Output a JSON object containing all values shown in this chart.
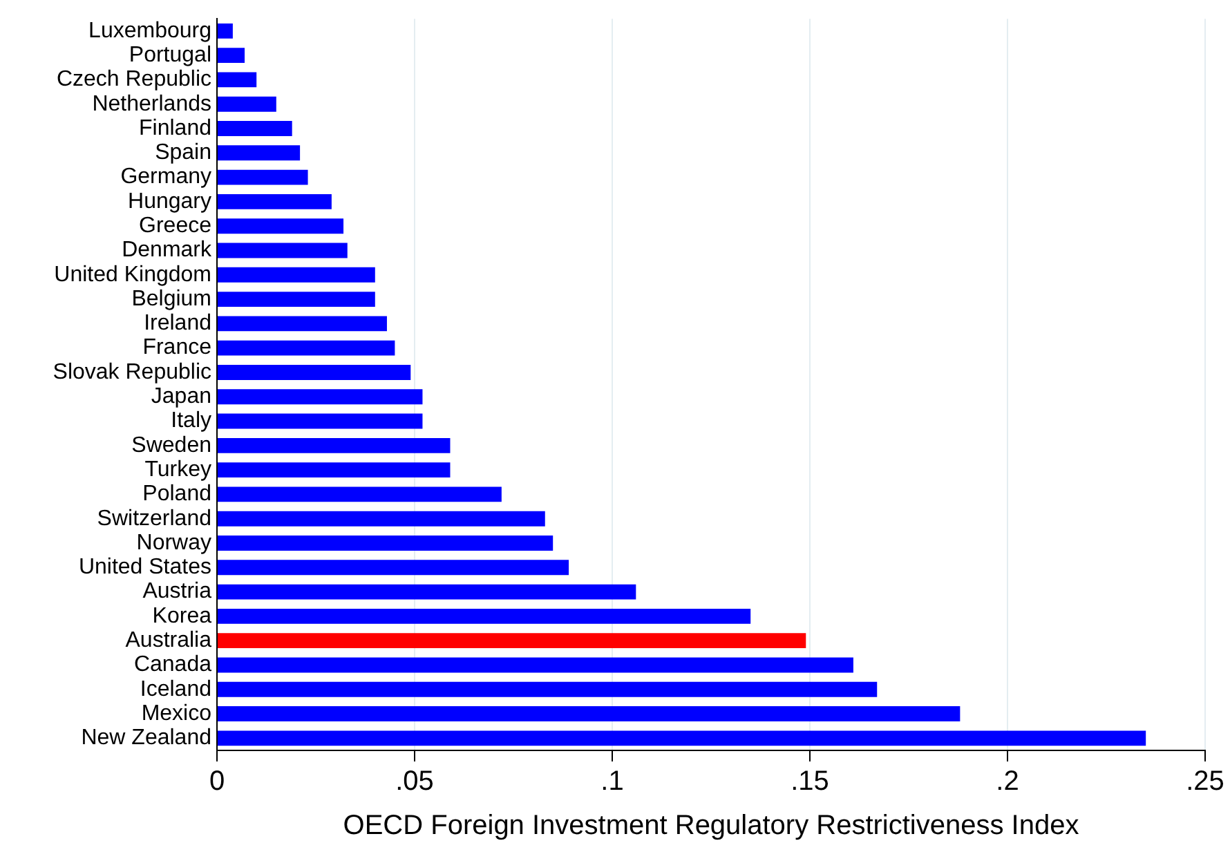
{
  "chart_data": {
    "type": "bar",
    "orientation": "horizontal",
    "xlabel": "OECD Foreign Investment Regulatory Restrictiveness Index",
    "categories": [
      "Luxembourg",
      "Portugal",
      "Czech Republic",
      "Netherlands",
      "Finland",
      "Spain",
      "Germany",
      "Hungary",
      "Greece",
      "Denmark",
      "United Kingdom",
      "Belgium",
      "Ireland",
      "France",
      "Slovak Republic",
      "Japan",
      "Italy",
      "Sweden",
      "Turkey",
      "Poland",
      "Switzerland",
      "Norway",
      "United States",
      "Austria",
      "Korea",
      "Australia",
      "Canada",
      "Iceland",
      "Mexico",
      "New Zealand"
    ],
    "values": [
      0.004,
      0.007,
      0.01,
      0.015,
      0.019,
      0.021,
      0.023,
      0.029,
      0.032,
      0.033,
      0.04,
      0.04,
      0.043,
      0.045,
      0.049,
      0.052,
      0.052,
      0.059,
      0.059,
      0.072,
      0.083,
      0.085,
      0.089,
      0.106,
      0.135,
      0.149,
      0.161,
      0.167,
      0.188,
      0.235
    ],
    "colors": [
      "#0000ff",
      "#0000ff",
      "#0000ff",
      "#0000ff",
      "#0000ff",
      "#0000ff",
      "#0000ff",
      "#0000ff",
      "#0000ff",
      "#0000ff",
      "#0000ff",
      "#0000ff",
      "#0000ff",
      "#0000ff",
      "#0000ff",
      "#0000ff",
      "#0000ff",
      "#0000ff",
      "#0000ff",
      "#0000ff",
      "#0000ff",
      "#0000ff",
      "#0000ff",
      "#0000ff",
      "#0000ff",
      "#ff0000",
      "#0000ff",
      "#0000ff",
      "#0000ff",
      "#0000ff"
    ],
    "xlim": [
      0,
      0.25
    ],
    "xticks": [
      {
        "value": 0,
        "label": "0"
      },
      {
        "value": 0.05,
        "label": ".05"
      },
      {
        "value": 0.1,
        "label": ".1"
      },
      {
        "value": 0.15,
        "label": ".15"
      },
      {
        "value": 0.2,
        "label": ".2"
      },
      {
        "value": 0.25,
        "label": ".25"
      }
    ],
    "grid": "x"
  }
}
